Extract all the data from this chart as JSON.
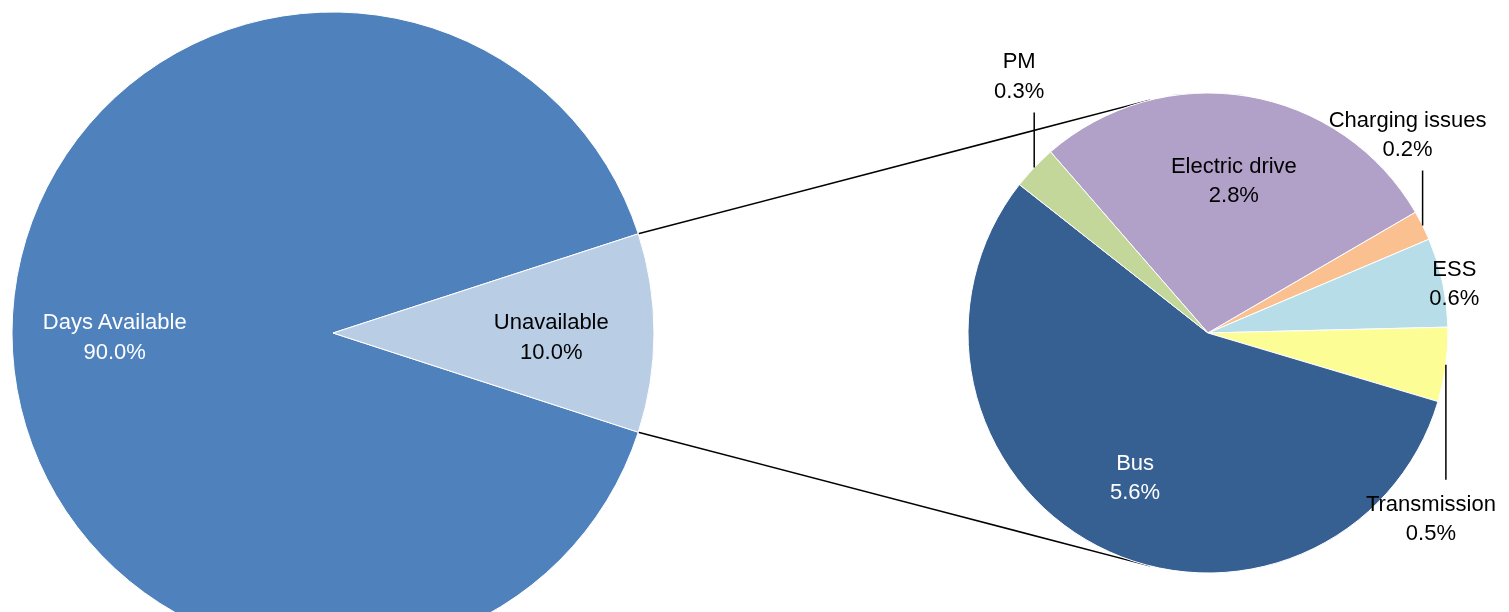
{
  "chart_data": [
    {
      "type": "pie",
      "categories": [
        "Days Available",
        "Unavailable"
      ],
      "values": [
        90.0,
        10.0
      ],
      "value_labels": [
        "90.0%",
        "10.0%"
      ],
      "colors": [
        "#4f81bd",
        "#b9cde5"
      ]
    },
    {
      "type": "pie",
      "categories": [
        "Electric drive",
        "Charging issues",
        "ESS",
        "Transmission",
        "Bus",
        "PM"
      ],
      "values": [
        2.8,
        0.2,
        0.6,
        0.5,
        5.6,
        0.3
      ],
      "value_labels": [
        "2.8%",
        "0.2%",
        "0.6%",
        "0.5%",
        "5.6%",
        "0.3%"
      ],
      "colors": [
        "#b1a0c7",
        "#fac090",
        "#b7dee8",
        "#fdfd96",
        "#376092",
        "#c4d79b"
      ]
    }
  ]
}
